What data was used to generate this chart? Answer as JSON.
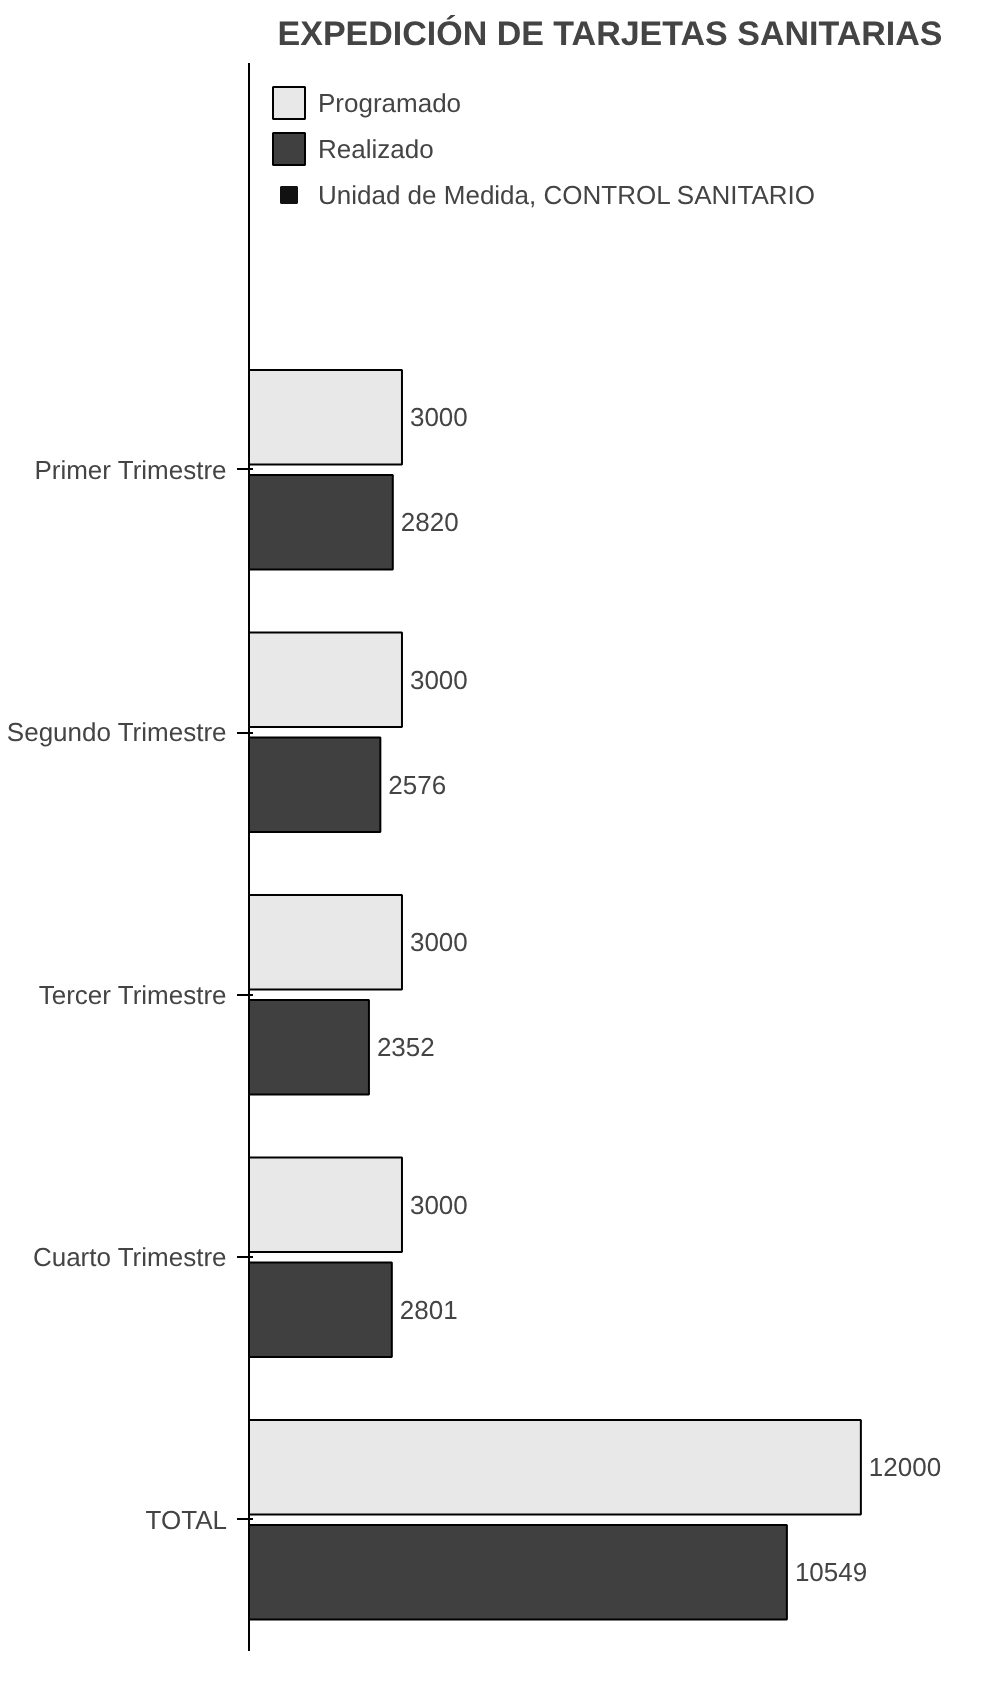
{
  "chart_data": {
    "type": "bar",
    "orientation": "horizontal",
    "title": "EXPEDICIÓN DE TARJETAS SANITARIAS",
    "categories": [
      "Primer Trimestre",
      "Segundo Trimestre",
      "Tercer Trimestre",
      "Cuarto Trimestre",
      "TOTAL"
    ],
    "series": [
      {
        "name": "Programado",
        "color": "#e8e8e8",
        "values": [
          3000,
          3000,
          3000,
          3000,
          12000
        ]
      },
      {
        "name": "Realizado",
        "color": "#404040",
        "values": [
          2820,
          2576,
          2352,
          2801,
          10549
        ]
      },
      {
        "name": "Unidad de Medida, CONTROL SANITARIO",
        "color": "#111111",
        "values": [
          null,
          null,
          null,
          null,
          null
        ]
      }
    ],
    "data_labels": true,
    "legend": "top",
    "grid": false
  }
}
